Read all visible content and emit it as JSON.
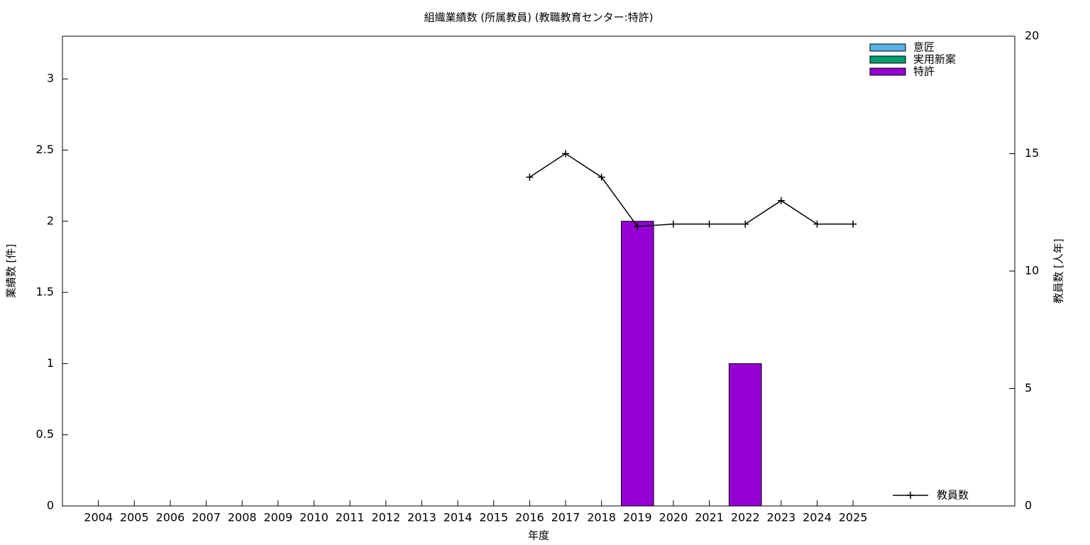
{
  "chart_data": {
    "type": "bar",
    "stacked": true,
    "title": "組織業績数 (所属教員) (教職教育センター:特許)",
    "x_label": "年度",
    "y_label": "業績数 [件]",
    "y2_label": "教員数 [人年]",
    "categories": [
      "2004",
      "2005",
      "2006",
      "2007",
      "2008",
      "2009",
      "2010",
      "2011",
      "2012",
      "2013",
      "2014",
      "2015",
      "2016",
      "2017",
      "2018",
      "2019",
      "2020",
      "2021",
      "2022",
      "2023",
      "2024",
      "2025"
    ],
    "series": [
      {
        "name": "意匠",
        "color": "#56b4e9",
        "values": [
          0,
          0,
          0,
          0,
          0,
          0,
          0,
          0,
          0,
          0,
          0,
          0,
          0,
          0,
          0,
          0,
          0,
          0,
          0,
          0,
          0,
          0
        ]
      },
      {
        "name": "実用新案",
        "color": "#009e73",
        "values": [
          0,
          0,
          0,
          0,
          0,
          0,
          0,
          0,
          0,
          0,
          0,
          0,
          0,
          0,
          0,
          0,
          0,
          0,
          0,
          0,
          0,
          0
        ]
      },
      {
        "name": "特許",
        "color": "#9400d3",
        "values": [
          0,
          0,
          0,
          0,
          0,
          0,
          0,
          0,
          0,
          0,
          0,
          0,
          0,
          0,
          0,
          2,
          0,
          0,
          1,
          0,
          0,
          0
        ]
      },
      {
        "name": "教員数",
        "color": "#000000",
        "type": "line",
        "axis": "y2",
        "values": [
          null,
          null,
          null,
          null,
          null,
          null,
          null,
          null,
          null,
          null,
          null,
          null,
          14,
          15,
          14,
          11.9,
          12,
          12,
          12,
          13,
          12,
          12
        ]
      }
    ],
    "ylim": [
      0,
      3.3
    ],
    "yticks": [
      0,
      0.5,
      1,
      1.5,
      2,
      2.5,
      3
    ],
    "y2lim": [
      0,
      20
    ],
    "y2ticks": [
      0,
      5,
      10,
      15,
      20
    ],
    "legend": "top right"
  }
}
